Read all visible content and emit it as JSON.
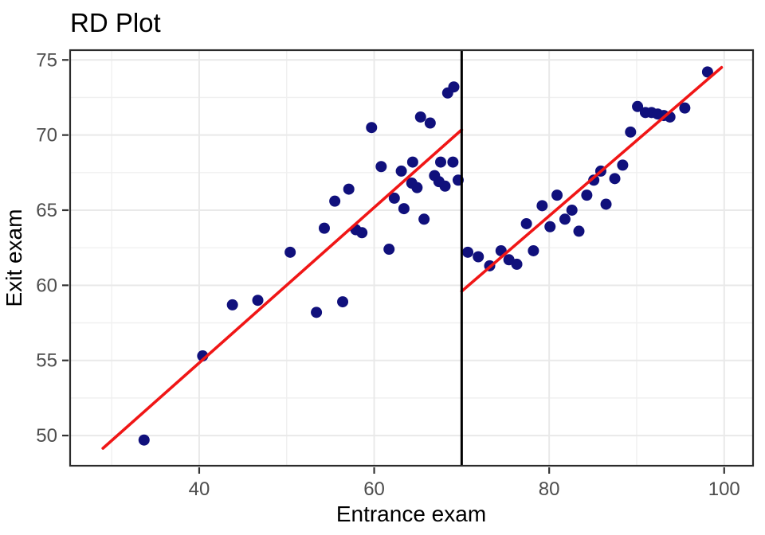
{
  "chart_data": {
    "type": "scatter",
    "title": "RD Plot",
    "xlabel": "Entrance exam",
    "ylabel": "Exit exam",
    "xlim": [
      25.25,
      103.3
    ],
    "ylim": [
      47.99,
      75.65
    ],
    "x_major_ticks": [
      40,
      60,
      80,
      100
    ],
    "x_minor_ticks": [
      30,
      50,
      70,
      90
    ],
    "y_major_ticks": [
      50,
      55,
      60,
      65,
      70,
      75
    ],
    "y_minor_ticks": [
      52.5,
      57.5,
      62.5,
      67.5,
      72.5
    ],
    "grid": "on",
    "legend": "none",
    "cutoff_x": 70,
    "points": [
      [
        33.7,
        49.7
      ],
      [
        40.4,
        55.3
      ],
      [
        43.8,
        58.7
      ],
      [
        46.7,
        59.0
      ],
      [
        50.4,
        62.2
      ],
      [
        53.4,
        58.2
      ],
      [
        56.4,
        58.9
      ],
      [
        54.3,
        63.8
      ],
      [
        55.5,
        65.6
      ],
      [
        57.1,
        66.4
      ],
      [
        57.9,
        63.7
      ],
      [
        58.6,
        63.5
      ],
      [
        59.7,
        70.5
      ],
      [
        60.8,
        67.9
      ],
      [
        61.7,
        62.4
      ],
      [
        62.3,
        65.8
      ],
      [
        63.1,
        67.6
      ],
      [
        63.4,
        65.1
      ],
      [
        64.4,
        68.2
      ],
      [
        64.3,
        66.8
      ],
      [
        64.9,
        66.5
      ],
      [
        65.3,
        71.2
      ],
      [
        66.4,
        70.8
      ],
      [
        65.7,
        64.4
      ],
      [
        66.9,
        67.3
      ],
      [
        67.4,
        66.9
      ],
      [
        67.6,
        68.2
      ],
      [
        69.0,
        68.2
      ],
      [
        68.1,
        66.6
      ],
      [
        69.6,
        67.0
      ],
      [
        68.4,
        72.8
      ],
      [
        69.1,
        73.2
      ],
      [
        70.7,
        62.2
      ],
      [
        71.9,
        61.9
      ],
      [
        73.2,
        61.3
      ],
      [
        74.5,
        62.3
      ],
      [
        75.4,
        61.7
      ],
      [
        76.3,
        61.4
      ],
      [
        77.4,
        64.1
      ],
      [
        78.2,
        62.3
      ],
      [
        79.2,
        65.3
      ],
      [
        80.1,
        63.9
      ],
      [
        80.9,
        66.0
      ],
      [
        81.8,
        64.4
      ],
      [
        82.6,
        65.0
      ],
      [
        83.4,
        63.6
      ],
      [
        84.3,
        66.0
      ],
      [
        85.1,
        67.0
      ],
      [
        85.9,
        67.6
      ],
      [
        86.5,
        65.4
      ],
      [
        87.5,
        67.1
      ],
      [
        88.4,
        68.0
      ],
      [
        89.3,
        70.2
      ],
      [
        90.1,
        71.9
      ],
      [
        91.0,
        71.5
      ],
      [
        91.7,
        71.5
      ],
      [
        92.4,
        71.4
      ],
      [
        93.1,
        71.3
      ],
      [
        93.8,
        71.2
      ],
      [
        95.5,
        71.8
      ],
      [
        98.1,
        74.2
      ]
    ],
    "regression_lines": [
      {
        "name": "left-of-cutoff",
        "x1": 29.0,
        "y1": 49.15,
        "x2": 70.0,
        "y2": 70.35
      },
      {
        "name": "right-of-cutoff",
        "x1": 70.0,
        "y1": 59.6,
        "x2": 99.7,
        "y2": 74.5
      }
    ],
    "colors": {
      "point": "#10107C",
      "regression_line": "#F01616",
      "cutoff_line": "#000000",
      "grid_major": "#E9E9E9",
      "grid_minor": "#F0F0F0",
      "panel_border": "#2B2B2B",
      "tick_mark": "#333333",
      "tick_label": "#4D4D4D",
      "background": "#FFFFFF"
    }
  }
}
